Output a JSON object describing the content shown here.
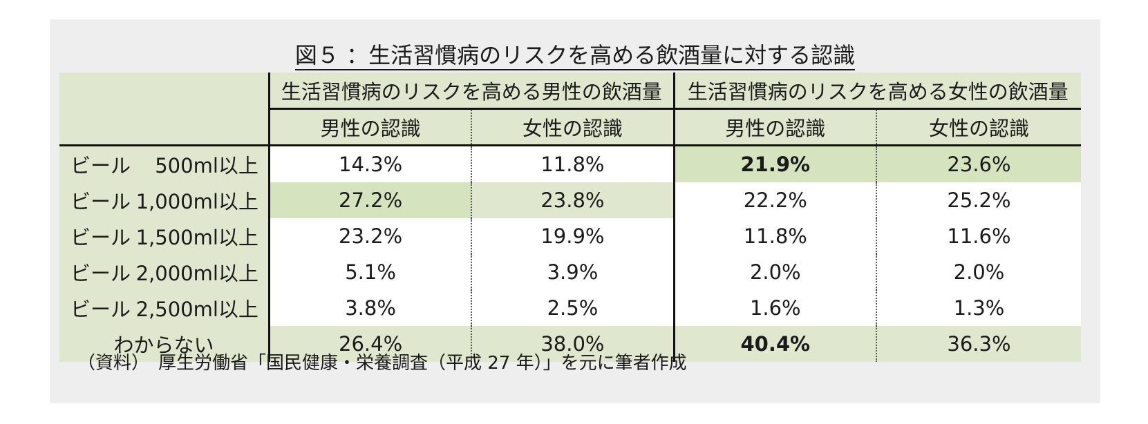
{
  "title": "図５ ：生活習慣病のリスクを高める飲酒量に対する認識",
  "header": {
    "group_male": "生活習慣病のリスクを高める男性の飲酒量",
    "group_female": "生活習慣病のリスクを高める女性の飲酒量",
    "sub_male": "男性の認識",
    "sub_female": "女性の認識"
  },
  "rows": [
    {
      "label_a": "ビール",
      "label_b": "500ml以上",
      "v": [
        "14.3%",
        "11.8%",
        "21.9%",
        "23.6%"
      ]
    },
    {
      "label_a": "ビール",
      "label_b": "1,000ml以上",
      "v": [
        "27.2%",
        "23.8%",
        "22.2%",
        "25.2%"
      ]
    },
    {
      "label_a": "ビール",
      "label_b": "1,500ml以上",
      "v": [
        "23.2%",
        "19.9%",
        "11.8%",
        "11.6%"
      ]
    },
    {
      "label_a": "ビール",
      "label_b": "2,000ml以上",
      "v": [
        "5.1%",
        "3.9%",
        "2.0%",
        "2.0%"
      ]
    },
    {
      "label_a": "ビール",
      "label_b": "2,500ml以上",
      "v": [
        "3.8%",
        "2.5%",
        "1.6%",
        "1.3%"
      ]
    },
    {
      "label": "わからない",
      "v": [
        "26.4%",
        "38.0%",
        "40.4%",
        "36.3%"
      ]
    }
  ],
  "note": "（資料）　厚生労働省「国民健康・栄養調査（平成 27 年）」を元に筆者作成",
  "colors": {
    "panel_bg": "#eeeeee",
    "header_green": "#dfe8ce",
    "highlight_green": "#d5e3bf",
    "cell_white": "#ffffff"
  }
}
